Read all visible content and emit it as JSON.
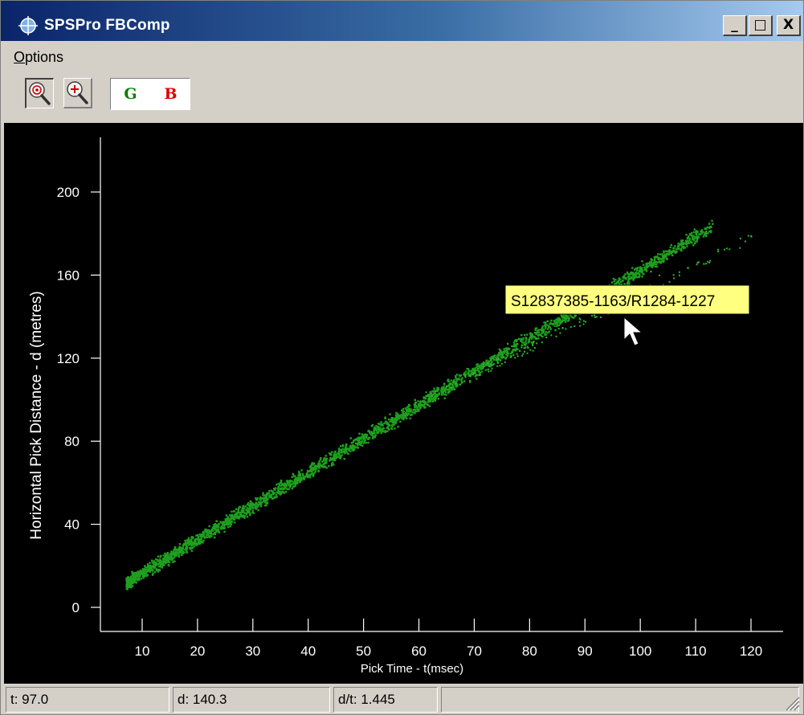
{
  "window": {
    "title": "SPSPro FBComp",
    "controls": {
      "minimize": "_",
      "maximize": "□",
      "close": "X"
    }
  },
  "menu": [
    {
      "label_first": "O",
      "label_rest": "ptions"
    }
  ],
  "toolbar": {
    "zoom_reset_icon": "zoom-reset-icon",
    "zoom_in_icon": "zoom-in-icon",
    "toggle_good_label": "G",
    "toggle_bad_label": "B",
    "good_color": "#008000",
    "bad_color": "#dd0000"
  },
  "chart_data": {
    "type": "scatter",
    "xlabel": "Pick Time - t(msec)",
    "ylabel": "Horizontal Pick Distance - d (metres)",
    "x_ticks": [
      10,
      20,
      30,
      40,
      50,
      60,
      70,
      80,
      90,
      100,
      110,
      120
    ],
    "y_ticks": [
      0,
      40,
      80,
      120,
      160,
      200
    ],
    "xlim": [
      5,
      127
    ],
    "ylim": [
      -5,
      222
    ],
    "background": "#000000",
    "axis_color": "#ffffff",
    "series": [
      {
        "color": "#1fa01f",
        "trend": {
          "x": [
            7,
            113
          ],
          "y": [
            12,
            184
          ]
        },
        "x_range": [
          7,
          113
        ]
      },
      {
        "color": "#2db52d",
        "trend": {
          "x": [
            60,
            120
          ],
          "y": [
            100,
            178
          ]
        },
        "x_range": [
          60,
          120
        ]
      }
    ],
    "annotations": [
      {
        "text": "S12837385-1163/R1284-1227",
        "x": 87,
        "y": 148
      }
    ]
  },
  "tooltip": {
    "text": "S12837385-1163/R1284-1227",
    "background": "#ffff80"
  },
  "status": {
    "t": "t: 97.0",
    "d": "d: 140.3",
    "dt": "d/t: 1.445",
    "extra": ""
  }
}
